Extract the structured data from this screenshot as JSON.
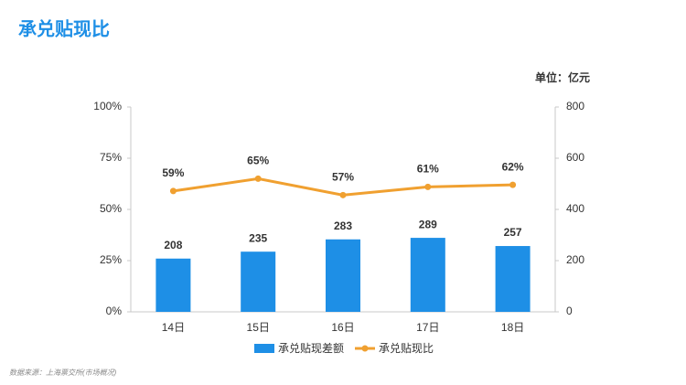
{
  "chart_data": {
    "type": "combo",
    "title": "承兑贴现比",
    "unit_label": "单位：亿元",
    "source": "数据来源：上海票交所(市场概况)",
    "categories": [
      "14日",
      "15日",
      "16日",
      "17日",
      "18日"
    ],
    "series": [
      {
        "name": "承兑贴现差额",
        "type": "bar",
        "axis": "y2",
        "color": "#1e8fe6",
        "values": [
          208,
          235,
          283,
          289,
          257
        ]
      },
      {
        "name": "承兑贴现比",
        "type": "line",
        "axis": "y",
        "color": "#f0a030",
        "values": [
          59,
          65,
          57,
          61,
          62
        ],
        "value_labels": [
          "59%",
          "65%",
          "57%",
          "61%",
          "62%"
        ]
      }
    ],
    "ylim": [
      0,
      100
    ],
    "yticks": [
      {
        "value": 0,
        "label": "0%"
      },
      {
        "value": 25,
        "label": "25%"
      },
      {
        "value": 50,
        "label": "50%"
      },
      {
        "value": 75,
        "label": "75%"
      },
      {
        "value": 100,
        "label": "100%"
      }
    ],
    "y2lim": [
      0,
      800
    ],
    "y2ticks": [
      0,
      200,
      400,
      600,
      800
    ],
    "grid": false
  }
}
